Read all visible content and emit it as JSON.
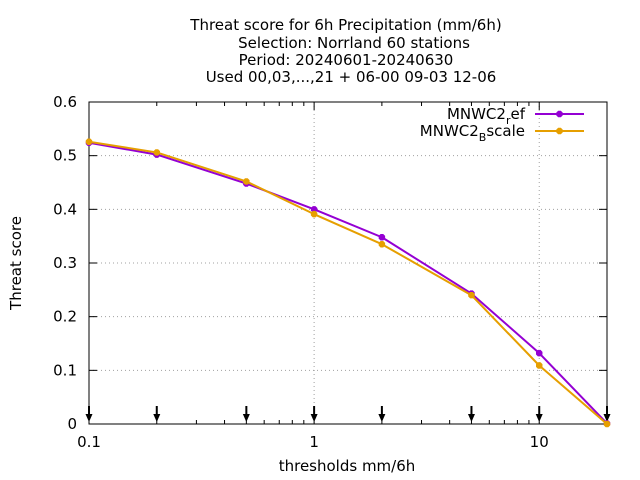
{
  "chart_data": {
    "type": "line",
    "title_lines": [
      "Threat score  for 6h Precipitation (mm/6h)",
      "Selection: Norrland     60 stations",
      "Period: 20240601-20240630",
      "Used 00,03,...,21 + 06-00 09-03 12-06"
    ],
    "xlabel": "thresholds mm/6h",
    "ylabel": "Threat score",
    "x_scale": "log",
    "xlim": [
      0.1,
      20
    ],
    "ylim": [
      0,
      0.6
    ],
    "x_ticks": [
      "0.1",
      "1",
      "10"
    ],
    "y_ticks": [
      "0",
      "0.1",
      "0.2",
      "0.3",
      "0.4",
      "0.5",
      "0.6"
    ],
    "grid": true,
    "legend_position": "top-right",
    "x": [
      0.1,
      0.2,
      0.5,
      1,
      2,
      5,
      10,
      20
    ],
    "series": [
      {
        "legend_base": "MNWC2",
        "legend_sub": "r",
        "legend_rest": "ef",
        "color": "#9400d3",
        "values": [
          0.524,
          0.502,
          0.448,
          0.4,
          0.348,
          0.243,
          0.132,
          0.001
        ]
      },
      {
        "legend_base": "MNWC2",
        "legend_sub": "B",
        "legend_rest": "scale",
        "color": "#e69f00",
        "values": [
          0.526,
          0.506,
          0.452,
          0.391,
          0.335,
          0.24,
          0.109,
          0.0
        ]
      }
    ],
    "marker_arrows_x": [
      0.1,
      0.2,
      0.5,
      1,
      2,
      5,
      10,
      20
    ]
  }
}
